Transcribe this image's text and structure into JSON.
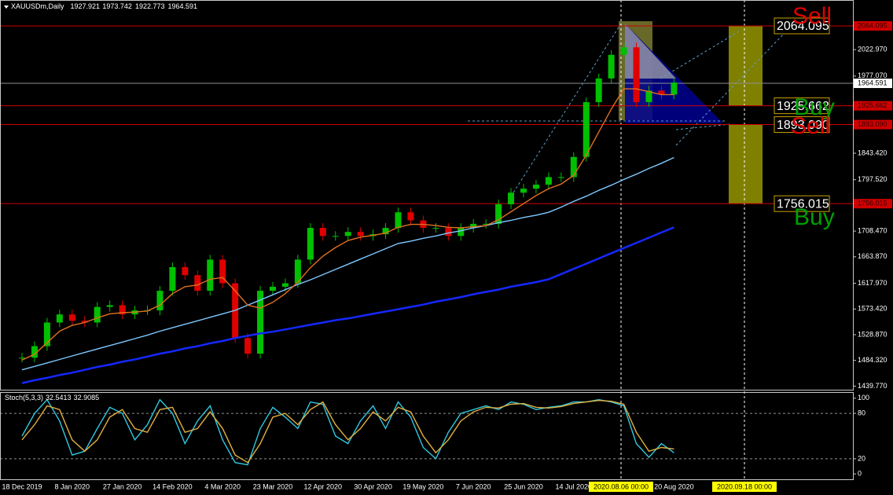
{
  "chart_data": [
    {
      "type": "candlestick",
      "title": "XAUUSDm,Daily",
      "ohlc": [
        1927.921,
        1973.742,
        1922.773,
        1964.591
      ],
      "categories": [
        "18 Dec 2019",
        null,
        null,
        null,
        "8 Jan 2020",
        null,
        null,
        null,
        "27 Jan 2020",
        null,
        null,
        null,
        "14 Feb 2020",
        null,
        null,
        null,
        "4 Mar 2020",
        null,
        null,
        null,
        "23 Mar 2020",
        null,
        null,
        null,
        "12 Apr 2020",
        null,
        null,
        null,
        "30 Apr 2020",
        null,
        null,
        null,
        "19 May 2020",
        null,
        null,
        null,
        "7 Jun 2020",
        null,
        null,
        null,
        "25 Jun 2020",
        null,
        null,
        null,
        "14 Jul 2020",
        null,
        null,
        null,
        null,
        null,
        null,
        null,
        "20 Aug 2020"
      ],
      "closes": [
        1489,
        1509,
        1550,
        1564,
        1553,
        1550,
        1577,
        1580,
        1564,
        1571,
        1571,
        1605,
        1646,
        1632,
        1605,
        1659,
        1618,
        1523,
        1496,
        1605,
        1612,
        1618,
        1659,
        1714,
        1700,
        1700,
        1707,
        1700,
        1703,
        1714,
        1741,
        1727,
        1714,
        1714,
        1700,
        1714,
        1721,
        1721,
        1755,
        1775,
        1782,
        1789,
        1802,
        1802,
        1837,
        1932,
        1973,
        2014,
        2027,
        1932,
        1952,
        1945,
        1966
      ],
      "up_color": "#00c000",
      "down_color": "#e00000",
      "series": [
        {
          "color": "#1428ff",
          "values": [
            1445,
            1450,
            1454,
            1459,
            1463,
            1468,
            1473,
            1477,
            1482,
            1486,
            1491,
            1496,
            1500,
            1505,
            1509,
            1514,
            1518,
            1523,
            1527,
            1531,
            1534,
            1538,
            1542,
            1546,
            1550,
            1554,
            1557,
            1561,
            1565,
            1569,
            1573,
            1577,
            1581,
            1586,
            1590,
            1594,
            1599,
            1603,
            1607,
            1612,
            1616,
            1620,
            1625,
            1634,
            1643,
            1652,
            1661,
            1670,
            1679,
            1688,
            1697,
            1706,
            1715
          ]
        },
        {
          "color": "#7ec8ff",
          "values": [
            1468,
            1474,
            1480,
            1486,
            1492,
            1498,
            1504,
            1510,
            1516,
            1522,
            1528,
            1535,
            1541,
            1547,
            1553,
            1559,
            1565,
            1571,
            1580,
            1589,
            1598,
            1607,
            1616,
            1624,
            1633,
            1642,
            1651,
            1660,
            1669,
            1678,
            1687,
            1691,
            1696,
            1700,
            1705,
            1709,
            1714,
            1718,
            1723,
            1727,
            1732,
            1736,
            1741,
            1750,
            1760,
            1769,
            1779,
            1788,
            1798,
            1807,
            1817,
            1826,
            1836
          ]
        },
        {
          "color": "#e07020",
          "values": [
            1485,
            1495,
            1515,
            1535,
            1545,
            1550,
            1558,
            1565,
            1567,
            1568,
            1570,
            1580,
            1600,
            1612,
            1615,
            1625,
            1628,
            1605,
            1580,
            1575,
            1585,
            1600,
            1620,
            1645,
            1665,
            1680,
            1692,
            1698,
            1701,
            1705,
            1715,
            1720,
            1720,
            1718,
            1715,
            1714,
            1716,
            1718,
            1728,
            1742,
            1756,
            1770,
            1782,
            1790,
            1805,
            1840,
            1880,
            1920,
            1955,
            1955,
            1950,
            1945,
            1945
          ]
        }
      ],
      "ylim": [
        1433.5,
        2109
      ],
      "yticks": [
        {
          "value": 2022.97,
          "label": "2022.970"
        },
        {
          "value": 1977.07,
          "label": "1977.070"
        },
        {
          "value": 1843.42,
          "label": "1843.420"
        },
        {
          "value": 1797.52,
          "label": "1797.520"
        },
        {
          "value": 1708.47,
          "label": "1708.470"
        },
        {
          "value": 1663.87,
          "label": "1663.870"
        },
        {
          "value": 1617.97,
          "label": "1617.970"
        },
        {
          "value": 1573.42,
          "label": "1573.420"
        },
        {
          "value": 1528.87,
          "label": "1528.870"
        },
        {
          "value": 1484.32,
          "label": "1484.320"
        },
        {
          "value": 1439.77,
          "label": "1439.770"
        }
      ],
      "levels": [
        2064.095,
        1925.662,
        {
          "value": 1893.09,
          "label": "1893.090"
        },
        1756.015
      ],
      "level_color": "#d00000",
      "annotations": [
        "Sell",
        "Buy",
        "Sell",
        "Buy"
      ],
      "crosshair_labels": [
        "2020.08.06 00:00",
        "2020.09.18 00:00"
      ]
    },
    {
      "type": "line",
      "title": "Stoch(5,3,3)",
      "current": [
        32.5413,
        32.9085
      ],
      "series": [
        {
          "color": "#30c8e0",
          "values": [
            50,
            80,
            98,
            70,
            25,
            30,
            60,
            88,
            80,
            45,
            65,
            98,
            80,
            40,
            70,
            90,
            45,
            15,
            12,
            60,
            88,
            75,
            60,
            95,
            92,
            50,
            40,
            70,
            90,
            60,
            95,
            75,
            35,
            20,
            55,
            80,
            85,
            90,
            85,
            95,
            92,
            85,
            88,
            90,
            95,
            95,
            98,
            95,
            90,
            40,
            22,
            40,
            28
          ]
        },
        {
          "color": "#e0b040",
          "values": [
            45,
            65,
            90,
            85,
            45,
            30,
            45,
            75,
            85,
            60,
            55,
            85,
            88,
            55,
            60,
            82,
            60,
            25,
            15,
            40,
            75,
            80,
            65,
            85,
            95,
            65,
            45,
            60,
            82,
            70,
            88,
            82,
            50,
            28,
            45,
            70,
            82,
            88,
            87,
            92,
            93,
            88,
            87,
            89,
            93,
            95,
            97,
            96,
            92,
            55,
            30,
            35,
            33
          ]
        }
      ],
      "ylim": [
        -5,
        105
      ],
      "yticks": [
        100,
        80,
        20,
        0
      ],
      "levels": [
        80,
        20
      ]
    }
  ]
}
